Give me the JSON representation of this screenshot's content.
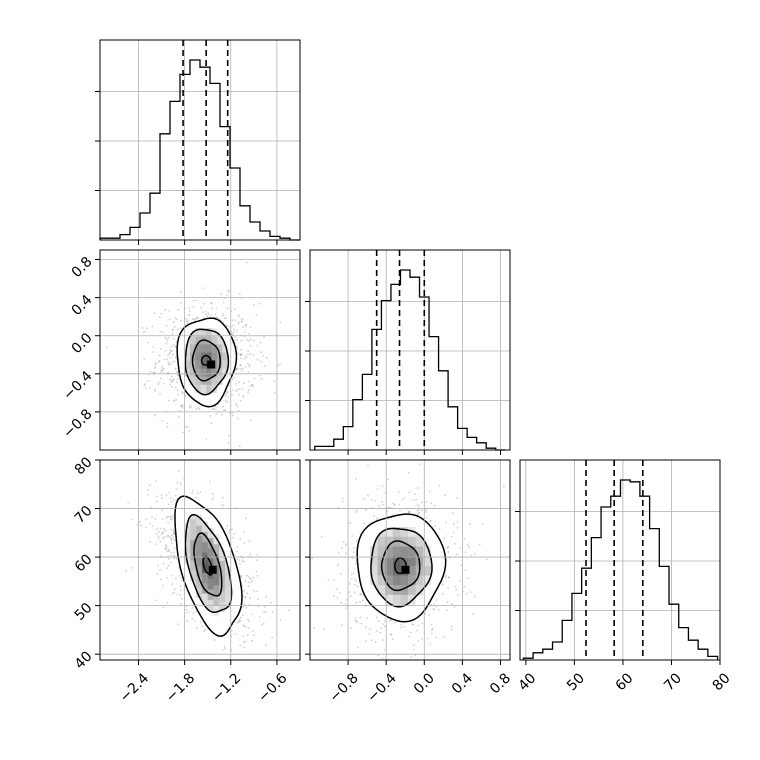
{
  "chart_data": {
    "type": "corner",
    "title": "",
    "parameters": [
      {
        "index": 0,
        "range": [
          -2.9,
          -0.3
        ]
      },
      {
        "index": 1,
        "range": [
          -1.2,
          0.9
        ]
      },
      {
        "index": 2,
        "range": [
          38.8,
          80.0
        ]
      }
    ],
    "grid": true,
    "quantile_lines_style": "dashed",
    "quantiles": [
      [
        -1.82,
        -1.52,
        -1.24
      ],
      [
        -0.5,
        -0.26,
        0.0
      ],
      [
        52.4,
        58.2,
        64.1
      ]
    ],
    "axis_ticks": {
      "p0": [
        "−2.4",
        "−1.8",
        "−1.2",
        "−0.6"
      ],
      "p1_x": [
        "−0.8",
        "−0.4",
        "0.0",
        "0.4",
        "0.8"
      ],
      "p1_y": [
        "−0.8",
        "−0.4",
        "0.0",
        "0.4",
        "0.8"
      ],
      "p2_x": [
        "40",
        "50",
        "60",
        "70",
        "80"
      ],
      "p2_y": [
        "40",
        "50",
        "60",
        "70",
        "80"
      ]
    },
    "tick_values": {
      "p0": [
        -2.4,
        -1.8,
        -1.2,
        -0.6
      ],
      "p1": [
        -0.8,
        -0.4,
        0.0,
        0.4,
        0.8
      ],
      "p2": [
        40,
        50,
        60,
        70,
        80
      ]
    },
    "histograms": [
      {
        "param": 0,
        "bin_start": -2.9,
        "bin_width": 0.13,
        "counts": [
          0.01,
          0.01,
          0.03,
          0.07,
          0.15,
          0.26,
          0.59,
          0.77,
          0.92,
          1.0,
          0.96,
          0.87,
          0.63,
          0.4,
          0.19,
          0.1,
          0.05,
          0.02,
          0.01,
          0.0
        ]
      },
      {
        "param": 1,
        "bin_start": -1.15,
        "bin_width": 0.1,
        "counts": [
          0.02,
          0.02,
          0.06,
          0.13,
          0.28,
          0.42,
          0.67,
          0.83,
          0.92,
          1.0,
          0.96,
          0.85,
          0.63,
          0.44,
          0.24,
          0.12,
          0.07,
          0.04,
          0.01,
          0.0
        ]
      },
      {
        "param": 2,
        "bin_start": 39.5,
        "bin_width": 2.0,
        "counts": [
          0.01,
          0.04,
          0.06,
          0.1,
          0.22,
          0.37,
          0.51,
          0.68,
          0.85,
          0.91,
          1.0,
          0.99,
          0.91,
          0.73,
          0.52,
          0.31,
          0.18,
          0.11,
          0.06,
          0.02
        ]
      }
    ],
    "contours": [
      {
        "x_param": 0,
        "y_param": 1,
        "center": [
          -1.52,
          -0.26
        ],
        "levels": [
          {
            "rx": 0.38,
            "ry": 0.46,
            "wobble": 0.08
          },
          {
            "rx": 0.28,
            "ry": 0.34,
            "wobble": 0.07
          },
          {
            "rx": 0.18,
            "ry": 0.21,
            "wobble": 0.06
          },
          {
            "rx": 0.06,
            "ry": 0.05,
            "wobble": 0.05
          }
        ],
        "scatter_spread": [
          0.32,
          0.3
        ]
      },
      {
        "x_param": 0,
        "y_param": 2,
        "center": [
          -1.5,
          58.2
        ],
        "tilt": -0.6,
        "levels": [
          {
            "rx": 0.43,
            "ry": 12.0,
            "wobble": 0.08
          },
          {
            "rx": 0.3,
            "ry": 8.5,
            "wobble": 0.07
          },
          {
            "rx": 0.18,
            "ry": 5.5,
            "wobble": 0.06
          },
          {
            "rx": 0.06,
            "ry": 1.6,
            "wobble": 0.05
          }
        ],
        "scatter_spread": [
          0.33,
          8.0
        ]
      },
      {
        "x_param": 1,
        "y_param": 2,
        "center": [
          -0.25,
          58.2
        ],
        "levels": [
          {
            "rx": 0.46,
            "ry": 11.0,
            "wobble": 0.07
          },
          {
            "rx": 0.32,
            "ry": 8.0,
            "wobble": 0.07
          },
          {
            "rx": 0.2,
            "ry": 5.0,
            "wobble": 0.06
          },
          {
            "rx": 0.06,
            "ry": 1.6,
            "wobble": 0.05
          }
        ],
        "scatter_spread": [
          0.3,
          7.5
        ]
      }
    ]
  }
}
